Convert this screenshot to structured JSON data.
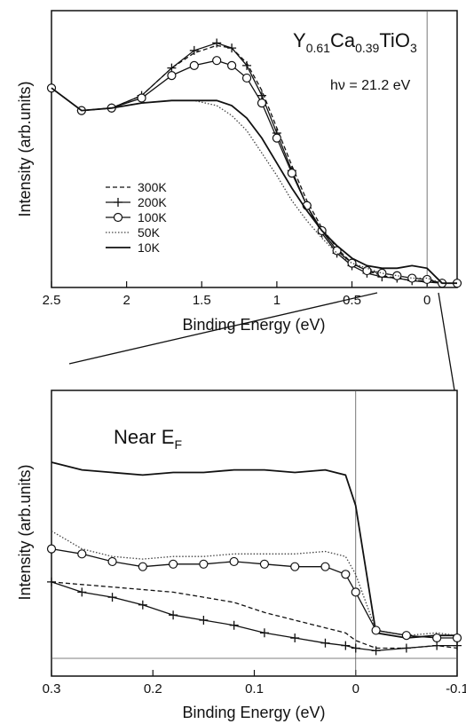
{
  "chart_data": [
    {
      "type": "line",
      "title": "Y0.61Ca0.39TiO3",
      "title_parts": {
        "el1": "Y",
        "sub1": "0.61",
        "el2": "Ca",
        "sub2": "0.39",
        "el3": "TiO",
        "sub3": "3"
      },
      "annotation_hv": "hν = 21.2 eV",
      "xlabel": "Binding Energy (eV)",
      "ylabel": "Intensity (arb.units)",
      "xlim": [
        2.5,
        -0.2
      ],
      "ylim": [
        0,
        1
      ],
      "xticks": [
        "2.5",
        "2",
        "1.5",
        "1",
        "0.5",
        "0"
      ],
      "legend_position": "middle-left",
      "series": [
        {
          "name": "300K",
          "style": "dashed",
          "x": [
            2.5,
            2.3,
            2.1,
            1.9,
            1.7,
            1.55,
            1.4,
            1.3,
            1.2,
            1.1,
            1.0,
            0.9,
            0.8,
            0.7,
            0.6,
            0.5,
            0.4,
            0.3,
            0.2,
            0.1,
            0.0,
            -0.1,
            -0.2
          ],
          "y": [
            0.79,
            0.7,
            0.71,
            0.76,
            0.87,
            0.93,
            0.96,
            0.95,
            0.89,
            0.78,
            0.63,
            0.48,
            0.34,
            0.23,
            0.15,
            0.09,
            0.06,
            0.04,
            0.03,
            0.02,
            0.02,
            0.01,
            0.01
          ]
        },
        {
          "name": "200K",
          "style": "plus",
          "x": [
            2.5,
            2.3,
            2.1,
            1.9,
            1.7,
            1.55,
            1.4,
            1.3,
            1.2,
            1.1,
            1.0,
            0.9,
            0.8,
            0.7,
            0.6,
            0.5,
            0.4,
            0.3,
            0.2,
            0.1,
            0.0,
            -0.1,
            -0.2
          ],
          "y": [
            0.79,
            0.7,
            0.71,
            0.76,
            0.87,
            0.94,
            0.97,
            0.95,
            0.88,
            0.76,
            0.61,
            0.46,
            0.32,
            0.21,
            0.13,
            0.08,
            0.05,
            0.035,
            0.03,
            0.02,
            0.015,
            0.01,
            0.01
          ]
        },
        {
          "name": "100K",
          "style": "circle",
          "x": [
            2.5,
            2.3,
            2.1,
            1.9,
            1.7,
            1.55,
            1.4,
            1.3,
            1.2,
            1.1,
            1.0,
            0.9,
            0.8,
            0.7,
            0.6,
            0.5,
            0.4,
            0.3,
            0.2,
            0.1,
            0.0,
            -0.1,
            -0.2
          ],
          "y": [
            0.79,
            0.7,
            0.71,
            0.75,
            0.84,
            0.88,
            0.9,
            0.88,
            0.83,
            0.73,
            0.59,
            0.45,
            0.32,
            0.22,
            0.14,
            0.09,
            0.06,
            0.05,
            0.04,
            0.03,
            0.025,
            0.01,
            0.01
          ]
        },
        {
          "name": "50K",
          "style": "dotted",
          "x": [
            2.5,
            2.3,
            2.1,
            1.9,
            1.7,
            1.55,
            1.4,
            1.3,
            1.2,
            1.1,
            1.0,
            0.9,
            0.8,
            0.7,
            0.6,
            0.5,
            0.4,
            0.3,
            0.2,
            0.1,
            0.0,
            -0.1,
            -0.2
          ],
          "y": [
            0.79,
            0.7,
            0.71,
            0.73,
            0.74,
            0.74,
            0.72,
            0.68,
            0.62,
            0.53,
            0.44,
            0.34,
            0.26,
            0.19,
            0.13,
            0.09,
            0.07,
            0.05,
            0.04,
            0.03,
            0.03,
            0.01,
            0.01
          ]
        },
        {
          "name": "10K",
          "style": "solid",
          "x": [
            2.5,
            2.3,
            2.1,
            1.9,
            1.7,
            1.55,
            1.4,
            1.3,
            1.2,
            1.1,
            1.0,
            0.9,
            0.8,
            0.7,
            0.6,
            0.5,
            0.4,
            0.3,
            0.2,
            0.1,
            0.0,
            -0.1,
            -0.2
          ],
          "y": [
            0.79,
            0.7,
            0.71,
            0.73,
            0.74,
            0.74,
            0.74,
            0.72,
            0.67,
            0.59,
            0.49,
            0.39,
            0.3,
            0.22,
            0.16,
            0.11,
            0.08,
            0.07,
            0.07,
            0.08,
            0.07,
            0.01,
            0.01
          ]
        }
      ]
    },
    {
      "type": "line",
      "title": "Near EF",
      "title_parts": {
        "main": "Near E",
        "sub": "F"
      },
      "xlabel": "Binding Energy (eV)",
      "ylabel": "Intensity (arb.units)",
      "xlim": [
        0.3,
        -0.1
      ],
      "ylim": [
        0,
        1
      ],
      "xticks": [
        "0.3",
        "0.2",
        "0.1",
        "0",
        "-0.1"
      ],
      "series": [
        {
          "name": "10K",
          "style": "solid",
          "x": [
            0.3,
            0.27,
            0.24,
            0.21,
            0.18,
            0.15,
            0.12,
            0.09,
            0.06,
            0.03,
            0.01,
            0.0,
            -0.02,
            -0.05,
            -0.08,
            -0.1
          ],
          "y": [
            0.77,
            0.74,
            0.73,
            0.72,
            0.73,
            0.73,
            0.74,
            0.74,
            0.73,
            0.74,
            0.72,
            0.6,
            0.1,
            0.08,
            0.09,
            0.09
          ]
        },
        {
          "name": "50K",
          "style": "dotted",
          "x": [
            0.3,
            0.27,
            0.24,
            0.21,
            0.18,
            0.15,
            0.12,
            0.09,
            0.06,
            0.03,
            0.01,
            0.0,
            -0.02,
            -0.05,
            -0.08,
            -0.1
          ],
          "y": [
            0.5,
            0.43,
            0.4,
            0.39,
            0.4,
            0.4,
            0.41,
            0.41,
            0.41,
            0.42,
            0.4,
            0.33,
            0.11,
            0.09,
            0.1,
            0.09
          ]
        },
        {
          "name": "100K",
          "style": "circle",
          "x": [
            0.3,
            0.27,
            0.24,
            0.21,
            0.18,
            0.15,
            0.12,
            0.09,
            0.06,
            0.03,
            0.01,
            0.0,
            -0.02,
            -0.05,
            -0.08,
            -0.1
          ],
          "y": [
            0.43,
            0.41,
            0.38,
            0.36,
            0.37,
            0.37,
            0.38,
            0.37,
            0.36,
            0.36,
            0.33,
            0.26,
            0.11,
            0.09,
            0.08,
            0.08
          ]
        },
        {
          "name": "300K",
          "style": "dashed",
          "x": [
            0.3,
            0.27,
            0.24,
            0.21,
            0.18,
            0.15,
            0.12,
            0.09,
            0.06,
            0.03,
            0.01,
            0.0,
            -0.02,
            -0.05,
            -0.08,
            -0.1
          ],
          "y": [
            0.3,
            0.29,
            0.28,
            0.27,
            0.26,
            0.24,
            0.22,
            0.18,
            0.15,
            0.12,
            0.1,
            0.07,
            0.04,
            0.04,
            0.05,
            0.04
          ]
        },
        {
          "name": "200K",
          "style": "plus",
          "x": [
            0.3,
            0.27,
            0.24,
            0.21,
            0.18,
            0.15,
            0.12,
            0.09,
            0.06,
            0.03,
            0.01,
            0.0,
            -0.02,
            -0.05,
            -0.08,
            -0.1
          ],
          "y": [
            0.3,
            0.26,
            0.24,
            0.21,
            0.17,
            0.15,
            0.13,
            0.1,
            0.08,
            0.06,
            0.05,
            0.04,
            0.03,
            0.04,
            0.05,
            0.05
          ]
        }
      ]
    }
  ]
}
